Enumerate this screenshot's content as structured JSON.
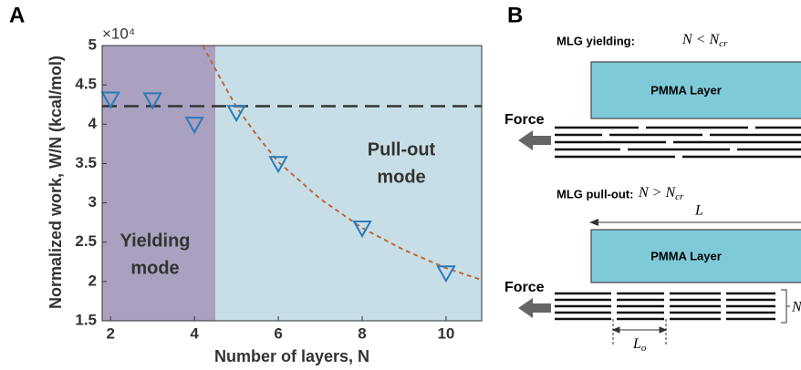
{
  "chart_data": {
    "type": "scatter",
    "panel_label": "A",
    "x_label": "Number of layers, N",
    "y_label": "Normalized work, W/N (kcal/mol)",
    "y_multiplier": "×10⁴",
    "xlim": [
      1.8,
      10.85
    ],
    "ylim": [
      1.5,
      5
    ],
    "xticks": [
      2,
      4,
      6,
      8,
      10
    ],
    "yticks": [
      1.5,
      2,
      2.5,
      3,
      3.5,
      4,
      4.5,
      5
    ],
    "regions": [
      {
        "lines": [
          "Yielding",
          "mode"
        ],
        "x": [
          1.8,
          4.5
        ],
        "color": "#a9a1bf"
      },
      {
        "lines": [
          "Pull-out",
          "mode"
        ],
        "x": [
          4.5,
          10.85
        ],
        "color": "#c7dee7"
      }
    ],
    "series": [
      {
        "style": "marker",
        "color": "#2b7bbb",
        "x": [
          2,
          3,
          4,
          5,
          6,
          8,
          10
        ],
        "values": [
          4.31,
          4.3,
          3.99,
          4.14,
          3.49,
          2.67,
          2.1
        ]
      },
      {
        "style": "dashed",
        "color": "#333333",
        "x": [
          1.8,
          10.85
        ],
        "values": [
          4.23,
          4.23
        ]
      },
      {
        "style": "dotted",
        "color": "#c0673c",
        "x": [
          4.2,
          4.6,
          5,
          5.5,
          6,
          7,
          8,
          9,
          10,
          10.85
        ],
        "values": [
          5,
          4.6,
          4.22,
          3.85,
          3.52,
          3.05,
          2.68,
          2.4,
          2.17,
          2.02
        ]
      }
    ]
  },
  "panel_b": {
    "panel_label": "B",
    "top": {
      "title": "MLG yielding:",
      "condition": {
        "main": "N < N",
        "sub": "cr"
      },
      "layer": "PMMA Layer",
      "force": "Force"
    },
    "bottom": {
      "title": "MLG pull-out:",
      "condition": {
        "main": "N > N",
        "sub": "cr"
      },
      "length": "L",
      "layer": "PMMA Layer",
      "force": "Force",
      "overlap": {
        "main": "L",
        "sub": "o"
      },
      "count": "N"
    }
  }
}
